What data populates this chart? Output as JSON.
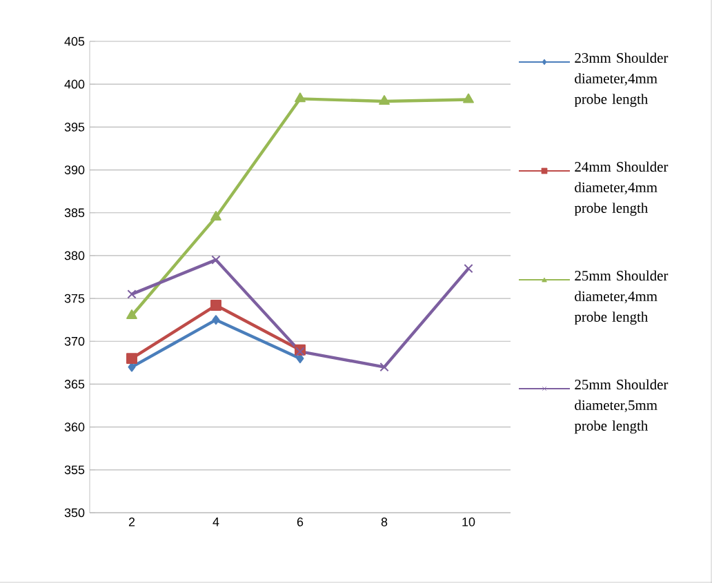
{
  "chart_data": {
    "type": "line",
    "categories": [
      "2",
      "4",
      "6",
      "8",
      "10"
    ],
    "series": [
      {
        "name": "23mm Shoulder diameter,4mm probe length",
        "color": "#4a7ebb",
        "marker": "diamond",
        "values": [
          367,
          372.5,
          368,
          null,
          null
        ]
      },
      {
        "name": "24mm Shoulder diameter,4mm probe length",
        "color": "#be4b48",
        "marker": "square",
        "values": [
          368,
          374.2,
          369,
          null,
          null
        ]
      },
      {
        "name": "25mm Shoulder diameter,4mm probe length",
        "color": "#98b954",
        "marker": "triangle",
        "values": [
          373,
          384.5,
          398.3,
          398,
          398.2
        ]
      },
      {
        "name": "25mm Shoulder diameter,5mm probe length",
        "color": "#7d5fa0",
        "marker": "cross",
        "values": [
          375.5,
          379.5,
          368.8,
          367,
          378.5
        ]
      }
    ],
    "ylim": [
      350,
      405
    ],
    "yticks": [
      350,
      355,
      360,
      365,
      370,
      375,
      380,
      385,
      390,
      395,
      400,
      405
    ],
    "grid": "y",
    "legend": "right"
  }
}
